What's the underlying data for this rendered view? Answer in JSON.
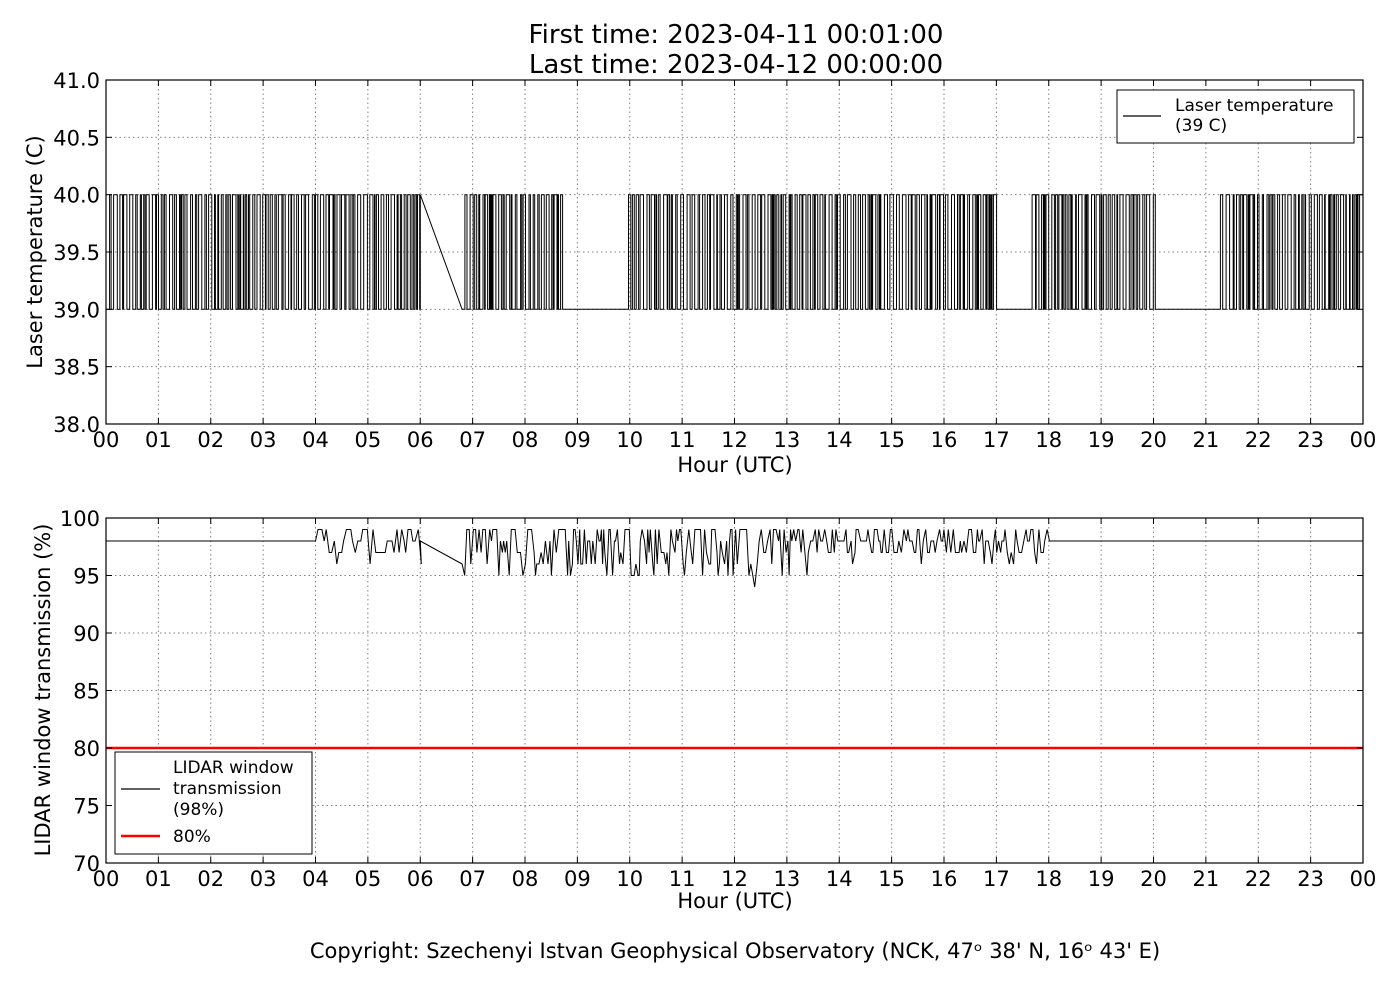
{
  "header": {
    "title_line1": "First time: 2023-04-11 00:01:00",
    "title_line2": "Last time: 2023-04-12 00:00:00"
  },
  "footer": {
    "copyright": "Copyright: Szechenyi Istvan Geophysical Observatory (NCK, 47ᵒ 38' N, 16ᵒ 43' E)"
  },
  "colors": {
    "series": "#000000",
    "threshold": "#ff0000",
    "grid": "#808080"
  },
  "chart_data": [
    {
      "type": "line",
      "xlabel": "Hour (UTC)",
      "ylabel": "Laser temperature (C)",
      "xlim": [
        0,
        24
      ],
      "ylim": [
        38.0,
        41.0
      ],
      "xticks": [
        "00",
        "01",
        "02",
        "03",
        "04",
        "05",
        "06",
        "07",
        "08",
        "09",
        "10",
        "11",
        "12",
        "13",
        "14",
        "15",
        "16",
        "17",
        "18",
        "19",
        "20",
        "21",
        "22",
        "23",
        "00"
      ],
      "yticks": [
        "38.0",
        "38.5",
        "39.0",
        "39.5",
        "40.0",
        "40.5",
        "41.0"
      ],
      "grid": true,
      "legend_position": "top-right",
      "series": [
        {
          "name": "Laser temperature\n(39 C)",
          "legend_lines": [
            "Laser temperature",
            "(39 C)"
          ],
          "color": "#000000",
          "description": "oscillates between 39.0 and 40.0 throughout the day, data gap 06:00-06:50",
          "levels": [
            39.0,
            40.0
          ],
          "segments": [
            [
              0.02,
              6.0
            ],
            [
              6.8,
              24.0
            ]
          ],
          "bridge": [
            [
              6.0,
              40.0
            ],
            [
              6.8,
              39.0
            ]
          ]
        }
      ]
    },
    {
      "type": "line",
      "xlabel": "Hour (UTC)",
      "ylabel": "LIDAR window transmission (%)",
      "xlim": [
        0,
        24
      ],
      "ylim": [
        70,
        100
      ],
      "xticks": [
        "00",
        "01",
        "02",
        "03",
        "04",
        "05",
        "06",
        "07",
        "08",
        "09",
        "10",
        "11",
        "12",
        "13",
        "14",
        "15",
        "16",
        "17",
        "18",
        "19",
        "20",
        "21",
        "22",
        "23",
        "00"
      ],
      "yticks": [
        "70",
        "75",
        "80",
        "85",
        "90",
        "95",
        "100"
      ],
      "grid": true,
      "legend_position": "lower-left",
      "series": [
        {
          "name": "LIDAR window\ntransmission\n(98%)",
          "legend_lines": [
            "LIDAR window",
            "transmission",
            "(98%)"
          ],
          "color": "#000000",
          "baseline": 98,
          "noisy_range": [
            4.0,
            18.0
          ],
          "bridge": [
            [
              6.0,
              98
            ],
            [
              6.8,
              96
            ]
          ],
          "min_values": [
            [
              9.85,
              94
            ],
            [
              12.4,
              94
            ]
          ]
        },
        {
          "name": "80%",
          "legend_lines": [
            "80%"
          ],
          "color": "#ff0000",
          "constant": 80
        }
      ]
    }
  ]
}
